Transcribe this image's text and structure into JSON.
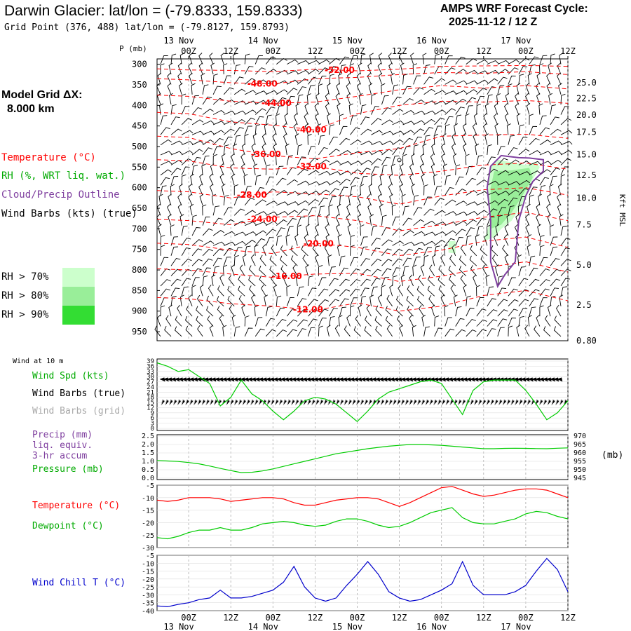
{
  "header": {
    "title": "Darwin Glacier:  lat/lon = (-79.8333, 159.8333)",
    "grid_point": "Grid Point (376, 488) lat/lon = (-79.8127, 159.8793)",
    "cycle_line1": "AMPS WRF Forecast Cycle:",
    "cycle_line2": "2025-11-12 / 12  Z",
    "model_grid_line1": "Model Grid ΔX:",
    "model_grid_line2": "8.000 km"
  },
  "legend": {
    "temperature": "Temperature (°C)",
    "rh": "RH (%, WRT liq. wat.)",
    "cloud": "Cloud/Precip Outline",
    "wind_barbs": "Wind Barbs (kts) (true)",
    "rh70": "RH > 70%",
    "rh80": "RH > 80%",
    "rh90": "RH > 90%",
    "wind_10m": "Wind at 10 m",
    "wind_spd": "Wind Spd (kts)",
    "wind_barbs_true": "Wind Barbs (true)",
    "wind_barbs_grid": "Wind Barbs (grid)",
    "precip1": "Precip (mm)",
    "precip2": "liq. equiv.",
    "precip3": "3-hr accum",
    "pressure": "Pressure (mb)",
    "pressure_unit": "(mb)",
    "temp2": "Temperature (°C)",
    "dewpoint": "Dewpoint (°C)",
    "windchill": "Wind Chill T (°C)"
  },
  "colors": {
    "temperature": "#ff0000",
    "rh70": "#ccffcc",
    "rh80": "#99ee99",
    "rh90": "#33dd33",
    "cloud": "#7f3f9f",
    "wind_spd": "#00cc00",
    "wind_grid": "#aaaaaa",
    "windchill": "#0000cc",
    "grid": "#aaaaaa"
  },
  "chart_data": [
    {
      "type": "contour",
      "panel": "sounding",
      "ylabel": "P (mb)",
      "right_label": "Kft MSL",
      "x_ticks": [
        "00Z",
        "12Z",
        "00Z",
        "12Z",
        "00Z",
        "12Z",
        "00Z",
        "12Z",
        "00Z",
        "12Z"
      ],
      "x_dates": [
        "13 Nov",
        "14 Nov",
        "15 Nov",
        "16 Nov",
        "17 Nov"
      ],
      "x_hours": [
        0,
        12,
        24,
        36,
        48,
        60,
        72,
        84,
        96,
        108
      ],
      "x_range": [
        -9,
        108
      ],
      "pressure_ticks": [
        300,
        350,
        400,
        450,
        500,
        550,
        600,
        650,
        700,
        750,
        800,
        850,
        900,
        950
      ],
      "kft_ticks": [
        {
          "label": "25.0",
          "p": 345
        },
        {
          "label": "22.5",
          "p": 383
        },
        {
          "label": "20.0",
          "p": 423
        },
        {
          "label": "17.5",
          "p": 465
        },
        {
          "label": "15.0",
          "p": 520
        },
        {
          "label": "12.5",
          "p": 570
        },
        {
          "label": "10.0",
          "p": 625
        },
        {
          "label": "7.5",
          "p": 690
        },
        {
          "label": "5.0",
          "p": 788
        },
        {
          "label": "2.5",
          "p": 885
        },
        {
          "label": "0.80",
          "p": 972
        }
      ],
      "isotherms": [
        {
          "label": "-52.00",
          "t": -52,
          "label_h": 43,
          "p": [
            314,
            315,
            318,
            312,
            316,
            312,
            305,
            304,
            303,
            305
          ]
        },
        {
          "label": "-48.00",
          "t": -48,
          "label_h": 21,
          "p": [
            338,
            345,
            348,
            335,
            332,
            325,
            320,
            322,
            318,
            325
          ]
        },
        {
          "label": "-44.00",
          "t": -44,
          "label_h": 25,
          "p": [
            378,
            390,
            395,
            392,
            378,
            362,
            352,
            358,
            352,
            360
          ]
        },
        {
          "label": "-40.00",
          "t": -40,
          "label_h": 35,
          "p": [
            420,
            440,
            448,
            460,
            420,
            400,
            390,
            392,
            388,
            395
          ]
        },
        {
          "label": "-36.00",
          "t": -36,
          "label_h": 22,
          "p": [
            478,
            505,
            522,
            530,
            515,
            505,
            475,
            472,
            470,
            480
          ]
        },
        {
          "label": "-32.00",
          "t": -32,
          "label_h": 35,
          "p": [
            535,
            552,
            555,
            548,
            565,
            570,
            560,
            545,
            540,
            555
          ]
        },
        {
          "label": "-28.00",
          "t": -28,
          "label_h": 18,
          "p": [
            610,
            625,
            610,
            615,
            622,
            640,
            620,
            605,
            600,
            618
          ]
        },
        {
          "label": "-24.00",
          "t": -24,
          "label_h": 21,
          "p": [
            680,
            690,
            672,
            668,
            680,
            705,
            690,
            672,
            660,
            680
          ]
        },
        {
          "label": "-20.00",
          "t": -20,
          "label_h": 37,
          "p": [
            738,
            752,
            760,
            735,
            745,
            765,
            752,
            730,
            720,
            745
          ]
        },
        {
          "label": "-16.00",
          "t": -16,
          "label_h": 28,
          "p": [
            800,
            810,
            818,
            810,
            808,
            828,
            815,
            795,
            780,
            805
          ]
        },
        {
          "label": "-12.00",
          "t": -12,
          "label_h": 34,
          "p": [
            870,
            882,
            888,
            898,
            880,
            900,
            888,
            862,
            850,
            875
          ]
        }
      ],
      "rh_regions": [
        {
          "level": "rh70",
          "points": [
            [
              86,
              548
            ],
            [
              88,
              532
            ],
            [
              93,
              540
            ],
            [
              96,
              545
            ],
            [
              99,
              538
            ],
            [
              100,
              550
            ],
            [
              98,
              580
            ],
            [
              95,
              640
            ],
            [
              92,
              680
            ],
            [
              89,
              700
            ],
            [
              87,
              720
            ],
            [
              84,
              730
            ],
            [
              86,
              680
            ],
            [
              85,
              620
            ]
          ]
        },
        {
          "level": "rh80",
          "points": [
            [
              87,
              560
            ],
            [
              92,
              558
            ],
            [
              97,
              552
            ],
            [
              98,
              575
            ],
            [
              95,
              620
            ],
            [
              92,
              660
            ],
            [
              89,
              690
            ],
            [
              86,
              700
            ],
            [
              86,
              640
            ],
            [
              86,
              600
            ]
          ]
        },
        {
          "level": "rh70",
          "points": [
            [
              74,
              730
            ],
            [
              76,
              730
            ],
            [
              76,
              760
            ],
            [
              74,
              758
            ]
          ]
        }
      ],
      "cloud_outline": [
        [
          86,
          548
        ],
        [
          89,
          522
        ],
        [
          94,
          527
        ],
        [
          97,
          528
        ],
        [
          101,
          532
        ],
        [
          101,
          560
        ],
        [
          98,
          585
        ],
        [
          96,
          620
        ],
        [
          94,
          680
        ],
        [
          93,
          780
        ],
        [
          90,
          812
        ],
        [
          88,
          840
        ],
        [
          86,
          780
        ],
        [
          86,
          680
        ],
        [
          85,
          600
        ]
      ],
      "dot": {
        "x_hour": 60,
        "p": 533
      }
    },
    {
      "type": "line",
      "panel": "wind",
      "series": [
        {
          "name": "Wind Spd (kts)",
          "color": "#00cc00",
          "x": [
            -9,
            -6,
            -3,
            0,
            3,
            6,
            9,
            12,
            15,
            18,
            21,
            24,
            27,
            30,
            33,
            36,
            39,
            42,
            45,
            48,
            51,
            54,
            57,
            60,
            63,
            66,
            69,
            72,
            75,
            78,
            81,
            84,
            87,
            90,
            93,
            96,
            99,
            102,
            105,
            108
          ],
          "y": [
            38,
            36,
            33,
            34,
            30,
            26,
            13,
            18,
            28,
            20,
            16,
            10,
            5,
            10,
            16,
            18,
            17,
            14,
            9,
            4,
            10,
            17,
            21,
            23,
            25,
            27,
            28,
            26,
            17,
            8,
            22,
            27,
            28,
            28,
            28,
            22,
            14,
            5,
            9,
            16
          ]
        }
      ],
      "ylim": [
        0,
        39
      ],
      "y_ticks": [
        0,
        3,
        6,
        9,
        12,
        15,
        18,
        21,
        24,
        27,
        30,
        33,
        36,
        39
      ]
    },
    {
      "type": "line",
      "panel": "precip_pressure",
      "y_left_ticks": [
        "0.0",
        "0.5",
        "1.0",
        "1.5",
        "2.0",
        "2.5"
      ],
      "y_right_ticks": [
        945,
        950,
        955,
        960,
        965,
        970
      ],
      "series": [
        {
          "name": "Pressure (mb)",
          "color": "#00cc00",
          "x": [
            -9,
            -6,
            -3,
            0,
            3,
            6,
            9,
            12,
            15,
            18,
            21,
            24,
            27,
            30,
            33,
            36,
            39,
            42,
            45,
            48,
            51,
            54,
            57,
            60,
            63,
            66,
            69,
            72,
            75,
            78,
            81,
            84,
            87,
            90,
            93,
            96,
            99,
            102,
            105,
            108
          ],
          "y": [
            955.5,
            955.2,
            954.9,
            954.3,
            953.5,
            952.2,
            950.8,
            949.5,
            948.3,
            948.5,
            949.3,
            950.5,
            952.0,
            953.5,
            955.0,
            956.5,
            958.0,
            959.5,
            960.5,
            961.5,
            962.5,
            963.3,
            964.0,
            964.5,
            965.0,
            965.0,
            964.8,
            964.5,
            964.0,
            963.5,
            963.0,
            962.5,
            962.5,
            962.7,
            962.8,
            962.7,
            962.6,
            962.5,
            962.8,
            963.0
          ]
        }
      ],
      "precip": []
    },
    {
      "type": "line",
      "panel": "temp_dewpoint",
      "y_ticks": [
        -5,
        -10,
        -15,
        -20,
        -25,
        -30
      ],
      "series": [
        {
          "name": "Temperature (°C)",
          "color": "#ff0000",
          "x": [
            -9,
            -6,
            -3,
            0,
            3,
            6,
            9,
            12,
            15,
            18,
            21,
            24,
            27,
            30,
            33,
            36,
            39,
            42,
            45,
            48,
            51,
            54,
            57,
            60,
            63,
            66,
            69,
            72,
            75,
            78,
            81,
            84,
            87,
            90,
            93,
            96,
            99,
            102,
            105,
            108
          ],
          "y": [
            -11,
            -11.5,
            -11,
            -10,
            -10,
            -10,
            -10.5,
            -11.5,
            -11,
            -10.5,
            -10,
            -10,
            -10.5,
            -12,
            -13,
            -13,
            -12,
            -11,
            -10.5,
            -10,
            -10,
            -10.5,
            -12,
            -13.5,
            -12,
            -10,
            -8,
            -6,
            -5.5,
            -7,
            -8.5,
            -9.5,
            -9,
            -8,
            -7,
            -6.5,
            -6.5,
            -7,
            -8.5,
            -10
          ]
        },
        {
          "name": "Dewpoint (°C)",
          "color": "#00cc00",
          "x": [
            -9,
            -6,
            -3,
            0,
            3,
            6,
            9,
            12,
            15,
            18,
            21,
            24,
            27,
            30,
            33,
            36,
            39,
            42,
            45,
            48,
            51,
            54,
            57,
            60,
            63,
            66,
            69,
            72,
            75,
            78,
            81,
            84,
            87,
            90,
            93,
            96,
            99,
            102,
            105,
            108
          ],
          "y": [
            -26,
            -26.5,
            -25.5,
            -24,
            -23,
            -23,
            -22,
            -23,
            -23,
            -22,
            -20.5,
            -20,
            -19.5,
            -20,
            -21,
            -21.5,
            -21,
            -19.5,
            -18.5,
            -18.5,
            -19.5,
            -21,
            -22,
            -21.5,
            -20,
            -18,
            -16,
            -15,
            -14,
            -18,
            -20,
            -20.5,
            -20.5,
            -19.5,
            -18.5,
            -16.5,
            -15.5,
            -16,
            -17.5,
            -18.5
          ]
        }
      ]
    },
    {
      "type": "line",
      "panel": "windchill",
      "y_ticks": [
        -5,
        -10,
        -15,
        -20,
        -25,
        -30,
        -35,
        -40
      ],
      "series": [
        {
          "name": "Wind Chill T (°C)",
          "color": "#0000cc",
          "x": [
            -9,
            -6,
            -3,
            0,
            3,
            6,
            9,
            12,
            15,
            18,
            21,
            24,
            27,
            30,
            33,
            36,
            39,
            42,
            45,
            48,
            51,
            54,
            57,
            60,
            63,
            66,
            69,
            72,
            75,
            78,
            81,
            84,
            87,
            90,
            93,
            96,
            99,
            102,
            105,
            108
          ],
          "y": [
            -37,
            -37.5,
            -36,
            -35,
            -33,
            -32,
            -27,
            -32,
            -32,
            -31,
            -29,
            -27,
            -22,
            -12,
            -25,
            -32,
            -34,
            -32,
            -24,
            -17,
            -9,
            -17,
            -28,
            -32,
            -34,
            -33,
            -30,
            -27,
            -23,
            -9,
            -24,
            -30,
            -30,
            -30,
            -28,
            -24,
            -15,
            -7,
            -14,
            -28
          ]
        }
      ]
    }
  ]
}
